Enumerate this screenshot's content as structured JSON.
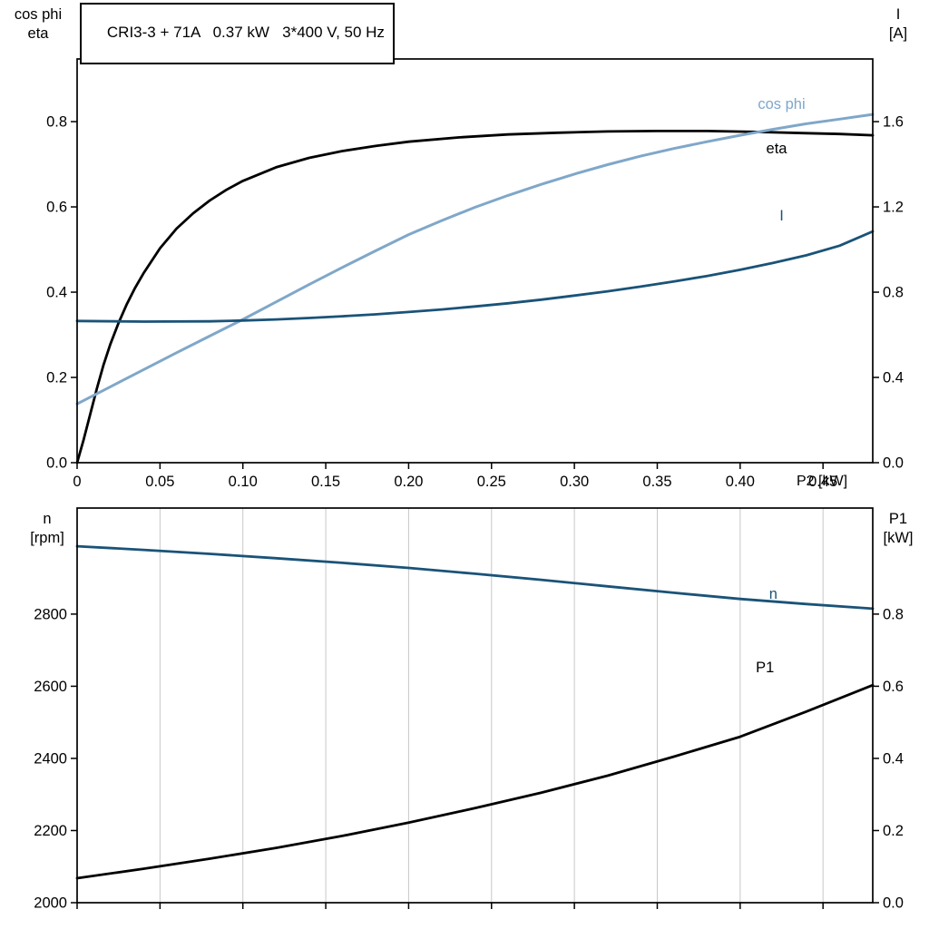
{
  "header": {
    "title": "CRI3-3 + 71A   0.37 kW   3*400 V, 50 Hz"
  },
  "axes_corner_labels": {
    "top_left": [
      "cos phi",
      "eta"
    ],
    "top_right": [
      "I",
      "[A]"
    ],
    "bottom_left": [
      "n",
      "[rpm]"
    ],
    "bottom_right": [
      "P1",
      "[kW]"
    ],
    "x_axis": "P2 [kW]"
  },
  "colors": {
    "light_blue": "#7FA7C9",
    "dark_blue": "#1A5378",
    "black": "#000000",
    "grid": "#C8C8C8"
  },
  "chart_data": [
    {
      "type": "line",
      "title": "CRI3-3 + 71A   0.37 kW   3*400 V, 50 Hz",
      "xlabel": "P2 [kW]",
      "xlim": [
        0,
        0.48
      ],
      "x_ticks": [
        0,
        0.05,
        0.1,
        0.15,
        0.2,
        0.25,
        0.3,
        0.35,
        0.4,
        0.45
      ],
      "x_tick_labels": [
        "0",
        "0.05",
        "0.10",
        "0.15",
        "0.20",
        "0.25",
        "0.30",
        "0.35",
        "0.40",
        "0.45"
      ],
      "grid": false,
      "left_axis": {
        "label": "cos phi / eta",
        "lim": [
          0,
          0.947
        ],
        "ticks": [
          0.0,
          0.2,
          0.4,
          0.6,
          0.8
        ],
        "tick_labels": [
          "0.0",
          "0.2",
          "0.4",
          "0.6",
          "0.8"
        ]
      },
      "right_axis": {
        "label": "I [A]",
        "lim": [
          0,
          1.894
        ],
        "ticks": [
          0.0,
          0.4,
          0.8,
          1.2,
          1.6
        ],
        "tick_labels": [
          "0.0",
          "0.4",
          "0.8",
          "1.2",
          "1.6"
        ]
      },
      "series": [
        {
          "name": "eta",
          "axis": "left",
          "color": "#000000",
          "width": 2.8,
          "label_at": [
            0.422,
            0.726
          ],
          "points": [
            [
              0,
              0
            ],
            [
              0.004,
              0.055
            ],
            [
              0.008,
              0.115
            ],
            [
              0.012,
              0.175
            ],
            [
              0.016,
              0.23
            ],
            [
              0.02,
              0.277
            ],
            [
              0.025,
              0.328
            ],
            [
              0.03,
              0.372
            ],
            [
              0.035,
              0.41
            ],
            [
              0.04,
              0.444
            ],
            [
              0.05,
              0.503
            ],
            [
              0.06,
              0.549
            ],
            [
              0.07,
              0.585
            ],
            [
              0.08,
              0.615
            ],
            [
              0.09,
              0.64
            ],
            [
              0.1,
              0.661
            ],
            [
              0.12,
              0.693
            ],
            [
              0.14,
              0.715
            ],
            [
              0.16,
              0.731
            ],
            [
              0.18,
              0.743
            ],
            [
              0.2,
              0.753
            ],
            [
              0.23,
              0.763
            ],
            [
              0.26,
              0.77
            ],
            [
              0.29,
              0.774
            ],
            [
              0.32,
              0.777
            ],
            [
              0.35,
              0.778
            ],
            [
              0.38,
              0.778
            ],
            [
              0.41,
              0.776
            ],
            [
              0.44,
              0.773
            ],
            [
              0.46,
              0.771
            ],
            [
              0.48,
              0.768
            ]
          ]
        },
        {
          "name": "cos phi",
          "axis": "left",
          "color": "#7FA7C9",
          "width": 3.0,
          "label_at": [
            0.425,
            0.83
          ],
          "points": [
            [
              0,
              0.138
            ],
            [
              0.02,
              0.178
            ],
            [
              0.04,
              0.218
            ],
            [
              0.06,
              0.258
            ],
            [
              0.08,
              0.297
            ],
            [
              0.1,
              0.336
            ],
            [
              0.12,
              0.377
            ],
            [
              0.14,
              0.418
            ],
            [
              0.16,
              0.458
            ],
            [
              0.18,
              0.497
            ],
            [
              0.2,
              0.535
            ],
            [
              0.22,
              0.568
            ],
            [
              0.24,
              0.599
            ],
            [
              0.26,
              0.627
            ],
            [
              0.28,
              0.653
            ],
            [
              0.3,
              0.677
            ],
            [
              0.32,
              0.699
            ],
            [
              0.34,
              0.719
            ],
            [
              0.36,
              0.737
            ],
            [
              0.38,
              0.753
            ],
            [
              0.4,
              0.768
            ],
            [
              0.42,
              0.782
            ],
            [
              0.44,
              0.795
            ],
            [
              0.46,
              0.806
            ],
            [
              0.48,
              0.817
            ]
          ]
        },
        {
          "name": "I",
          "axis": "right",
          "color": "#1A5378",
          "width": 2.8,
          "label_at": [
            0.425,
            1.136
          ],
          "points": [
            [
              0,
              0.665
            ],
            [
              0.04,
              0.662
            ],
            [
              0.08,
              0.663
            ],
            [
              0.1,
              0.667
            ],
            [
              0.12,
              0.672
            ],
            [
              0.14,
              0.679
            ],
            [
              0.16,
              0.687
            ],
            [
              0.18,
              0.696
            ],
            [
              0.2,
              0.707
            ],
            [
              0.22,
              0.719
            ],
            [
              0.24,
              0.733
            ],
            [
              0.26,
              0.748
            ],
            [
              0.28,
              0.765
            ],
            [
              0.3,
              0.784
            ],
            [
              0.32,
              0.804
            ],
            [
              0.34,
              0.826
            ],
            [
              0.36,
              0.85
            ],
            [
              0.38,
              0.876
            ],
            [
              0.4,
              0.905
            ],
            [
              0.42,
              0.937
            ],
            [
              0.44,
              0.973
            ],
            [
              0.46,
              1.018
            ],
            [
              0.48,
              1.085
            ]
          ]
        }
      ]
    },
    {
      "type": "line",
      "title": "",
      "xlabel": "",
      "xlim": [
        0,
        0.48
      ],
      "x_ticks": [
        0,
        0.05,
        0.1,
        0.15,
        0.2,
        0.25,
        0.3,
        0.35,
        0.4,
        0.45
      ],
      "x_tick_labels": [],
      "grid": true,
      "left_axis": {
        "label": "n [rpm]",
        "lim": [
          2000,
          3094
        ],
        "ticks": [
          2000,
          2200,
          2400,
          2600,
          2800
        ],
        "tick_labels": [
          "2000",
          "2200",
          "2400",
          "2600",
          "2800"
        ]
      },
      "right_axis": {
        "label": "P1 [kW]",
        "lim": [
          0,
          1.094
        ],
        "ticks": [
          0.0,
          0.2,
          0.4,
          0.6,
          0.8
        ],
        "tick_labels": [
          "0.0",
          "0.2",
          "0.4",
          "0.6",
          "0.8"
        ]
      },
      "series": [
        {
          "name": "n",
          "axis": "left",
          "color": "#1A5378",
          "width": 2.8,
          "label_at": [
            0.42,
            2842
          ],
          "points": [
            [
              0,
              2988
            ],
            [
              0.04,
              2978
            ],
            [
              0.08,
              2967
            ],
            [
              0.12,
              2955
            ],
            [
              0.16,
              2942
            ],
            [
              0.2,
              2928
            ],
            [
              0.24,
              2912
            ],
            [
              0.28,
              2895
            ],
            [
              0.32,
              2877
            ],
            [
              0.36,
              2859
            ],
            [
              0.4,
              2842
            ],
            [
              0.44,
              2828
            ],
            [
              0.48,
              2815
            ]
          ]
        },
        {
          "name": "P1",
          "axis": "right",
          "color": "#000000",
          "width": 2.8,
          "label_at": [
            0.415,
            0.639
          ],
          "points": [
            [
              0,
              0.068
            ],
            [
              0.04,
              0.094
            ],
            [
              0.08,
              0.122
            ],
            [
              0.12,
              0.152
            ],
            [
              0.16,
              0.185
            ],
            [
              0.2,
              0.222
            ],
            [
              0.24,
              0.262
            ],
            [
              0.28,
              0.305
            ],
            [
              0.32,
              0.352
            ],
            [
              0.36,
              0.405
            ],
            [
              0.4,
              0.46
            ],
            [
              0.44,
              0.53
            ],
            [
              0.48,
              0.603
            ]
          ]
        }
      ]
    }
  ]
}
